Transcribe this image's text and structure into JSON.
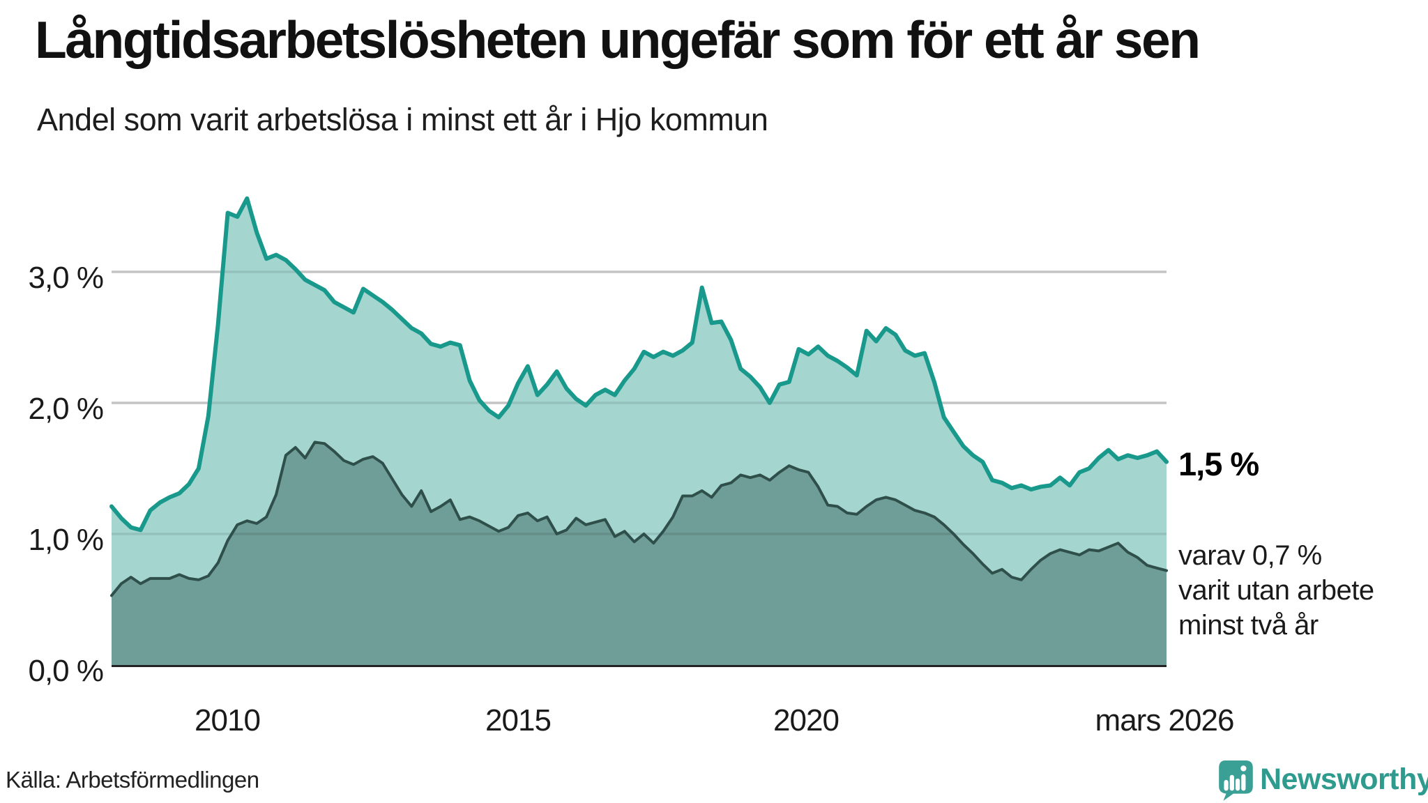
{
  "header": {
    "title": "Långtidsarbetslösheten ungefär som för ett år sen",
    "subtitle": "Andel som varit arbetslösa i minst ett år i Hjo kommun"
  },
  "chart_data": {
    "type": "area",
    "title": "Långtidsarbetslösheten ungefär som för ett år sen",
    "subtitle": "Andel som varit arbetslösa i minst ett år i Hjo kommun",
    "unit": "%",
    "x_start_year": 2008,
    "x_end_label": "mars 2026",
    "x_step_months": 2,
    "ylim": [
      0,
      3.7
    ],
    "grid": "horizontal",
    "y_axis": {
      "tick_labels": [
        "0,0 %",
        "1,0 %",
        "2,0 %",
        "3,0 %"
      ],
      "tick_values": [
        0,
        1,
        2,
        3
      ]
    },
    "x_axis": {
      "ticks": [
        {
          "label": "2010",
          "year": 2010
        },
        {
          "label": "2015",
          "year": 2015
        },
        {
          "label": "2020",
          "year": 2020
        },
        {
          "label": "mars 2026",
          "year": 2026.17
        }
      ]
    },
    "series": [
      {
        "name": "arbetslösa minst ett år",
        "line_color": "#18998c",
        "fill_color": "#a4d5cf",
        "line_width": 6,
        "values": [
          1.21,
          1.12,
          1.05,
          1.03,
          1.18,
          1.24,
          1.28,
          1.31,
          1.38,
          1.5,
          1.9,
          2.6,
          3.45,
          3.42,
          3.56,
          3.3,
          3.1,
          3.13,
          3.09,
          3.02,
          2.94,
          2.9,
          2.86,
          2.77,
          2.73,
          2.69,
          2.87,
          2.82,
          2.77,
          2.71,
          2.64,
          2.57,
          2.53,
          2.45,
          2.43,
          2.46,
          2.44,
          2.17,
          2.02,
          1.94,
          1.89,
          1.98,
          2.15,
          2.28,
          2.06,
          2.14,
          2.24,
          2.11,
          2.03,
          1.98,
          2.06,
          2.1,
          2.06,
          2.17,
          2.26,
          2.39,
          2.35,
          2.39,
          2.36,
          2.4,
          2.46,
          2.88,
          2.61,
          2.62,
          2.48,
          2.26,
          2.2,
          2.12,
          2.0,
          2.14,
          2.16,
          2.41,
          2.37,
          2.43,
          2.36,
          2.32,
          2.27,
          2.21,
          2.55,
          2.47,
          2.57,
          2.52,
          2.4,
          2.36,
          2.38,
          2.16,
          1.89,
          1.78,
          1.67,
          1.6,
          1.55,
          1.41,
          1.39,
          1.35,
          1.37,
          1.34,
          1.36,
          1.37,
          1.43,
          1.37,
          1.47,
          1.5,
          1.58,
          1.64,
          1.57,
          1.6,
          1.58,
          1.6,
          1.63,
          1.55
        ]
      },
      {
        "name": "varav arbetslösa minst två år",
        "line_color": "#2f4f4b",
        "fill_color": "#6f9d97",
        "line_width": 4,
        "values": [
          0.53,
          0.62,
          0.67,
          0.62,
          0.66,
          0.66,
          0.66,
          0.69,
          0.66,
          0.65,
          0.68,
          0.78,
          0.95,
          1.07,
          1.1,
          1.08,
          1.13,
          1.3,
          1.6,
          1.66,
          1.58,
          1.7,
          1.69,
          1.63,
          1.56,
          1.53,
          1.57,
          1.59,
          1.54,
          1.42,
          1.3,
          1.21,
          1.33,
          1.17,
          1.21,
          1.26,
          1.11,
          1.13,
          1.1,
          1.06,
          1.02,
          1.05,
          1.14,
          1.16,
          1.1,
          1.13,
          1.0,
          1.03,
          1.12,
          1.07,
          1.09,
          1.11,
          0.98,
          1.02,
          0.94,
          1.0,
          0.93,
          1.02,
          1.13,
          1.29,
          1.29,
          1.33,
          1.28,
          1.37,
          1.39,
          1.45,
          1.43,
          1.45,
          1.41,
          1.47,
          1.52,
          1.49,
          1.47,
          1.36,
          1.22,
          1.21,
          1.16,
          1.15,
          1.21,
          1.26,
          1.28,
          1.26,
          1.22,
          1.18,
          1.16,
          1.13,
          1.07,
          1.0,
          0.92,
          0.85,
          0.77,
          0.7,
          0.73,
          0.67,
          0.65,
          0.73,
          0.8,
          0.85,
          0.88,
          0.86,
          0.84,
          0.88,
          0.87,
          0.9,
          0.93,
          0.86,
          0.82,
          0.76,
          0.74,
          0.72
        ]
      }
    ],
    "annotations": {
      "end_value_label": "1,5 %",
      "sub_lines": [
        "varav 0,7 %",
        "varit utan arbete",
        "minst två år"
      ]
    },
    "colors": {
      "grid": "#d8d8d8",
      "axis": "#222222",
      "background": "#ffffff"
    }
  },
  "footer": {
    "source": "Källa: Arbetsförmedlingen",
    "brand": "Newsworthy",
    "brand_color": "#2f9a8e",
    "brand_icon_color": "#3aa096"
  }
}
